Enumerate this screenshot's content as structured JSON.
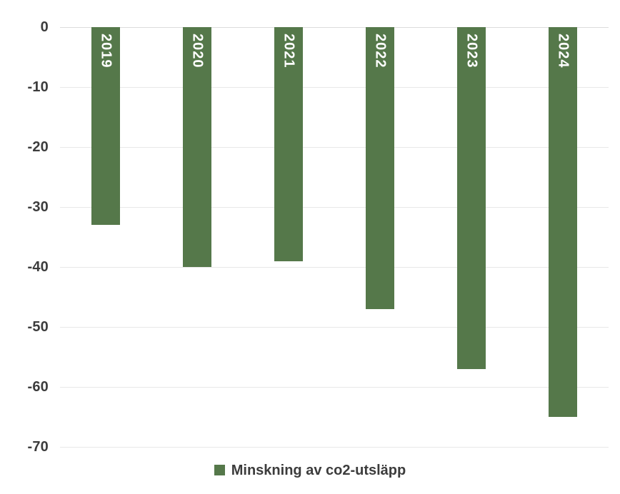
{
  "chart_data": {
    "type": "bar",
    "categories": [
      "2019",
      "2020",
      "2021",
      "2022",
      "2023",
      "2024"
    ],
    "values": [
      -33,
      -40,
      -39,
      -47,
      -57,
      -65
    ],
    "series_name": "Minskning av co2-utsläpp",
    "title": "",
    "xlabel": "",
    "ylabel": "",
    "ylim": [
      0,
      -70
    ],
    "yticks": [
      0,
      -10,
      -20,
      -30,
      -40,
      -50,
      -60,
      -70
    ],
    "grid": true,
    "legend_position": "bottom",
    "bar_labels_inside": true
  },
  "legend": {
    "label": "Minskning av co2-utsläpp"
  },
  "colors": {
    "bar": "#55784a",
    "grid": "#e8e8e8",
    "zero_line": "#dcdcdc",
    "tick_text": "#3c3c3c",
    "legend_text": "#3c3c3c",
    "bar_label_text": "#ffffff",
    "background": "#ffffff"
  }
}
